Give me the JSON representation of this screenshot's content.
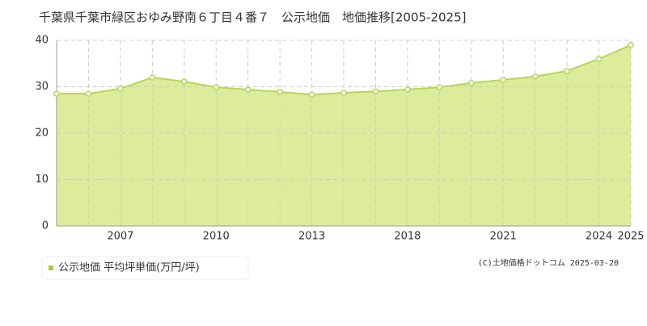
{
  "chart_data": {
    "type": "area",
    "title": "千葉県千葉市緑区おゆみ野南６丁目４番７　公示地価　地価推移[2005-2025]",
    "categories": [
      null,
      null,
      "2007",
      null,
      null,
      "2010",
      null,
      null,
      "2013",
      null,
      null,
      "2018",
      null,
      null,
      "2021",
      null,
      null,
      "2024",
      "2025"
    ],
    "series": [
      {
        "name": "公示地価 平均坪単価(万円/坪)",
        "color": "#b5d65a",
        "values": [
          28.5,
          28.5,
          29.6,
          32.0,
          31.1,
          29.9,
          29.4,
          28.9,
          28.3,
          28.7,
          29.0,
          29.4,
          29.9,
          30.8,
          31.5,
          32.2,
          33.4,
          36.0,
          39.0
        ]
      }
    ],
    "ylim": [
      0,
      40
    ],
    "yticks": [
      0,
      10,
      20,
      30,
      40
    ],
    "grid": true,
    "credit": "(C)土地価格ドットコム 2025-03-20"
  }
}
